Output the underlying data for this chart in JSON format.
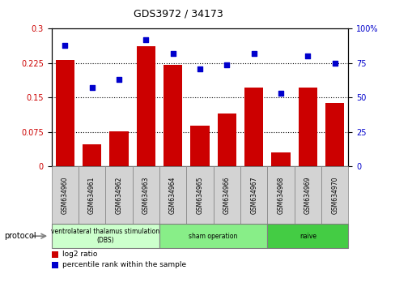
{
  "title": "GDS3972 / 34173",
  "samples": [
    "GSM634960",
    "GSM634961",
    "GSM634962",
    "GSM634963",
    "GSM634964",
    "GSM634965",
    "GSM634966",
    "GSM634967",
    "GSM634968",
    "GSM634969",
    "GSM634970"
  ],
  "log2_ratio": [
    0.232,
    0.048,
    0.077,
    0.262,
    0.222,
    0.088,
    0.115,
    0.172,
    0.03,
    0.172,
    0.138
  ],
  "percentile_rank": [
    88,
    57,
    63,
    92,
    82,
    71,
    74,
    82,
    53,
    80,
    75
  ],
  "bar_color": "#cc0000",
  "dot_color": "#0000cc",
  "ylim_left": [
    0,
    0.3
  ],
  "ylim_right": [
    0,
    100
  ],
  "yticks_left": [
    0,
    0.075,
    0.15,
    0.225,
    0.3
  ],
  "yticks_right": [
    0,
    25,
    50,
    75,
    100
  ],
  "ytick_labels_left": [
    "0",
    "0.075",
    "0.15",
    "0.225",
    "0.3"
  ],
  "ytick_labels_right": [
    "0",
    "25",
    "50",
    "75",
    "100%"
  ],
  "groups": [
    {
      "label": "ventrolateral thalamus stimulation\n(DBS)",
      "start": 0,
      "end": 3,
      "color": "#ccffcc"
    },
    {
      "label": "sham operation",
      "start": 4,
      "end": 7,
      "color": "#88ee88"
    },
    {
      "label": "naive",
      "start": 8,
      "end": 10,
      "color": "#44cc44"
    }
  ],
  "protocol_label": "protocol",
  "legend_items": [
    {
      "color": "#cc0000",
      "label": "log2 ratio"
    },
    {
      "color": "#0000cc",
      "label": "percentile rank within the sample"
    }
  ],
  "tick_label_bg": "#d3d3d3",
  "group_colors": [
    "#ccffcc",
    "#88ee88",
    "#44cc44"
  ]
}
